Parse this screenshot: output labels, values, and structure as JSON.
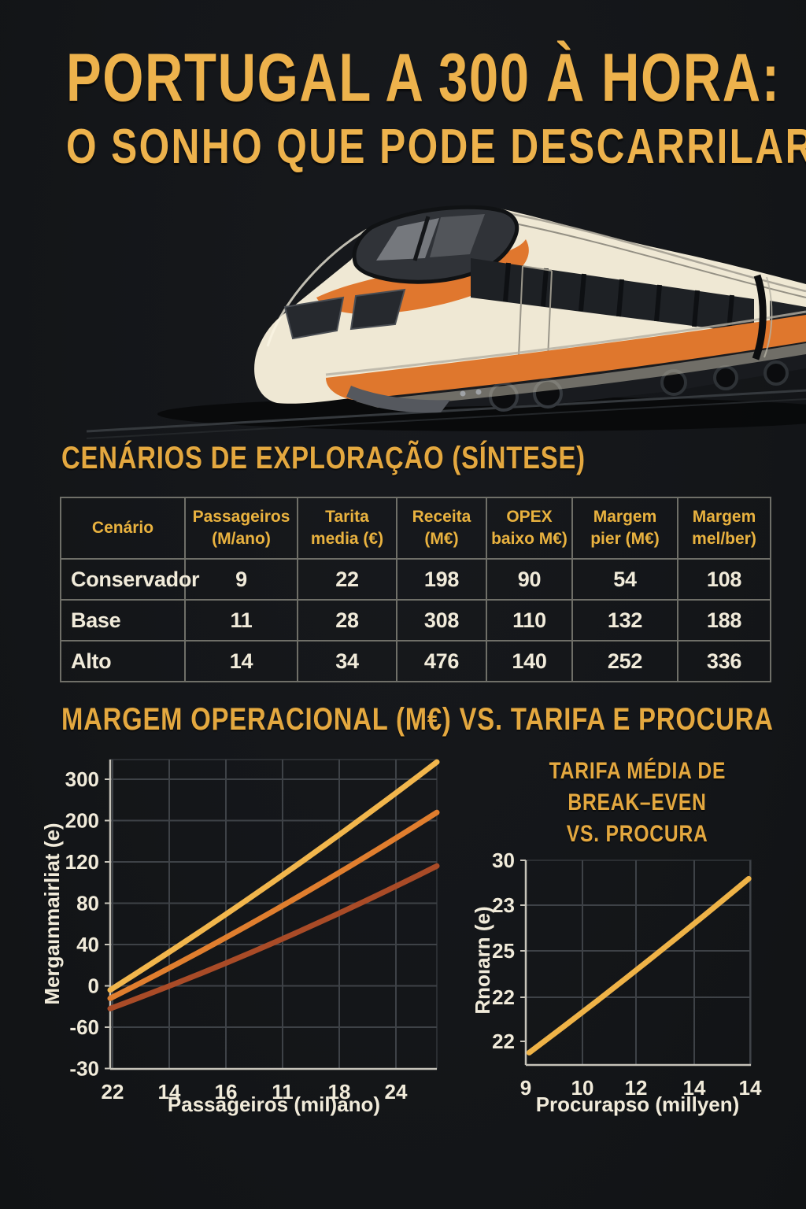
{
  "palette": {
    "background": "#15171A",
    "gold": "#E7AB43",
    "gold_bright": "#EDB24C",
    "cream": "#F1EBDA",
    "orange": "#DF772D",
    "dark_red": "#A94B27",
    "grid": "#3E4247",
    "spine": "#C6C3B9",
    "plot_border": "#33373B",
    "table_border": "#6F6F68"
  },
  "title": {
    "line1": "PORTUGAL A 300 À HORA:",
    "line2": "O SONHO QUE PODE DESCARRILAR"
  },
  "hero": {
    "illustration": "high-speed-train",
    "body_color": "#EFE8D4",
    "stripe_color": "#DF772D",
    "glass_color": "#2B2E33"
  },
  "table_section": {
    "heading": "CENÁRIOS DE EXPLORAÇÃO (SÍNTESE)",
    "table": {
      "headers": [
        "Cenário",
        "Passageiros (M/ano)",
        "Tarita media (€)",
        "Receita (M€)",
        "OPEX baixo M€)",
        "Margem pier (M€)",
        "Margem mel/ber)"
      ],
      "rows": [
        [
          "Conservador",
          "9",
          "22",
          "198",
          "90",
          "54",
          "108"
        ],
        [
          "Base",
          "11",
          "28",
          "308",
          "110",
          "132",
          "188"
        ],
        [
          "Alto",
          "14",
          "34",
          "476",
          "140",
          "252",
          "336"
        ]
      ]
    }
  },
  "chart_data": [
    {
      "type": "line",
      "title": "MARGEM OPERACIONAL (M€) VS. TARIFA E PROCURA",
      "xlabel": "Passageiros (mil)ano)",
      "ylabel": "Mergaınmairliat (e)",
      "yticks": [
        "300",
        "200",
        "120",
        "80",
        "40",
        "0",
        "-60",
        "-30"
      ],
      "xticks": [
        "22",
        "14",
        "16",
        "11",
        "18",
        "24"
      ],
      "grid": true,
      "legend": "none",
      "series": [
        {
          "name": "linha-dourada",
          "color": "#F2B64C",
          "start_frac": [
            0,
            0.255
          ],
          "end_frac": [
            1,
            0.992
          ]
        },
        {
          "name": "linha-laranja",
          "color": "#E07E2E",
          "start_frac": [
            0,
            0.228
          ],
          "end_frac": [
            1,
            0.829
          ]
        },
        {
          "name": "linha-vermelha",
          "color": "#A94B27",
          "start_frac": [
            0,
            0.195
          ],
          "end_frac": [
            1,
            0.656
          ]
        }
      ]
    },
    {
      "type": "line",
      "title_lines": [
        "TARIFA MÉDIA DE",
        "BREAK–EVEN",
        "VS. PROCURA"
      ],
      "xlabel": "Procurapso (millyen)",
      "ylabel": "Rnoıarn (e)",
      "yticks": [
        "30",
        "23",
        "25",
        "22",
        "22"
      ],
      "xticks": [
        "9",
        "10",
        "12",
        "14",
        "14"
      ],
      "grid": true,
      "legend": "none",
      "series": [
        {
          "name": "linha-dourada",
          "color": "#EFB347",
          "start_frac": [
            0.015,
            0.06
          ],
          "end_frac": [
            0.99,
            0.91
          ]
        }
      ]
    }
  ]
}
